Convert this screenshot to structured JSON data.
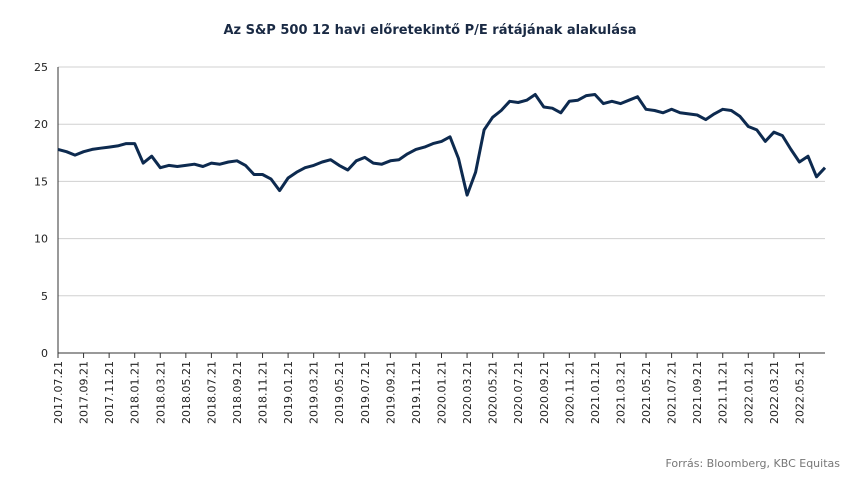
{
  "chart_data": {
    "type": "line",
    "title": "Az S&P 500 12 havi előretekintő P/E rátájának alakulása",
    "source": "Forrás: Bloomberg,  KBC Equitas",
    "categories": [
      "2017.07.21",
      null,
      null,
      "2017.09.21",
      null,
      null,
      "2017.11.21",
      null,
      null,
      "2018.01.21",
      null,
      null,
      "2018.03.21",
      null,
      null,
      "2018.05.21",
      null,
      null,
      "2018.07.21",
      null,
      null,
      "2018.09.21",
      null,
      null,
      "2018.11.21",
      null,
      null,
      "2019.01.21",
      null,
      null,
      "2019.03.21",
      null,
      null,
      "2019.05.21",
      null,
      null,
      "2019.07.21",
      null,
      null,
      "2019.09.21",
      null,
      null,
      "2019.11.21",
      null,
      null,
      "2020.01.21",
      null,
      null,
      "2020.03.21",
      null,
      null,
      "2020.05.21",
      null,
      null,
      "2020.07.21",
      null,
      null,
      "2020.09.21",
      null,
      null,
      "2020.11.21",
      null,
      null,
      "2021.01.21",
      null,
      null,
      "2021.03.21",
      null,
      null,
      "2021.05.21",
      null,
      null,
      "2021.07.21",
      null,
      null,
      "2021.09.21",
      null,
      null,
      "2021.11.21",
      null,
      null,
      "2022.01.21",
      null,
      null,
      "2022.03.21",
      null,
      null,
      "2022.05.21",
      null,
      null,
      null
    ],
    "series": [
      {
        "name": "P/E",
        "color": "#0d2a4f",
        "values": [
          17.8,
          17.6,
          17.3,
          17.6,
          17.8,
          17.9,
          18.0,
          18.1,
          18.3,
          18.3,
          16.6,
          17.2,
          16.2,
          16.4,
          16.3,
          16.4,
          16.5,
          16.3,
          16.6,
          16.5,
          16.7,
          16.8,
          16.4,
          15.6,
          15.6,
          15.2,
          14.2,
          15.3,
          15.8,
          16.2,
          16.4,
          16.7,
          16.9,
          16.4,
          16.0,
          16.8,
          17.1,
          16.6,
          16.5,
          16.8,
          16.9,
          17.4,
          17.8,
          18.0,
          18.3,
          18.5,
          18.9,
          17.0,
          13.8,
          15.8,
          19.5,
          20.6,
          21.2,
          22.0,
          21.9,
          22.1,
          22.6,
          21.5,
          21.4,
          21.0,
          22.0,
          22.1,
          22.5,
          22.6,
          21.8,
          22.0,
          21.8,
          22.1,
          22.4,
          21.3,
          21.2,
          21.0,
          21.3,
          21.0,
          20.9,
          20.8,
          20.4,
          20.9,
          21.3,
          21.2,
          20.7,
          19.8,
          19.5,
          18.5,
          19.3,
          19.0,
          17.8,
          16.7,
          17.2,
          15.4,
          16.2
        ]
      }
    ],
    "ylim": [
      0,
      25
    ],
    "yticks": [
      0,
      5,
      10,
      15,
      20,
      25
    ],
    "grid": true
  }
}
